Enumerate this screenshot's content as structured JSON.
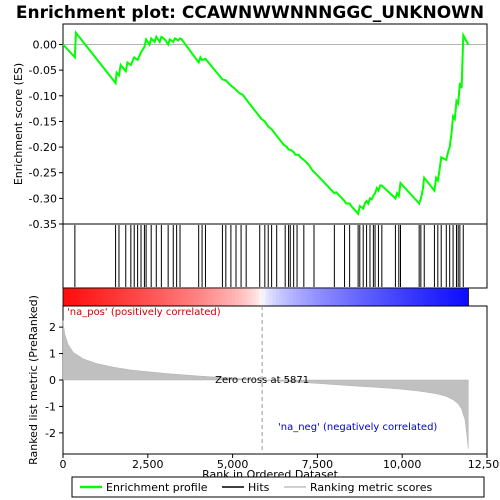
{
  "chart_data": {
    "type": "line",
    "title": "Enrichment plot: CCAWNWWNNNGGC_UNKNOWN",
    "xlabel": "Rank in Ordered Dataset",
    "ylabel_top": "Enrichment score (ES)",
    "ylabel_bottom": "Ranked list metric (PreRanked)",
    "x_range": [
      0,
      12500
    ],
    "x_ticks": [
      "0",
      "2,500",
      "5,000",
      "7,500",
      "10,000",
      "12,500"
    ],
    "x_tick_values": [
      0,
      2500,
      5000,
      7500,
      10000,
      12500
    ],
    "es_range": [
      -0.35,
      0.04
    ],
    "es_ticks": [
      "0.00",
      "-0.05",
      "-0.10",
      "-0.15",
      "-0.20",
      "-0.25",
      "-0.30",
      "-0.35"
    ],
    "es_tick_values": [
      0,
      -0.05,
      -0.1,
      -0.15,
      -0.2,
      -0.25,
      -0.3,
      -0.35
    ],
    "metric_range": [
      -2.8,
      2.8
    ],
    "metric_ticks": [
      "2",
      "1",
      "0",
      "-1",
      "-2"
    ],
    "metric_tick_values": [
      2,
      1,
      0,
      -1,
      -2
    ],
    "n_genes": 11950,
    "zero_cross": 5871,
    "zero_cross_label": "Zero cross at 5871",
    "pos_label": "'na_pos' (positively correlated)",
    "neg_label": "'na_neg' (negatively correlated)",
    "enrichment_profile": {
      "name": "Enrichment profile",
      "color": "#00ff00",
      "x": [
        0,
        350,
        380,
        1550,
        1580,
        1650,
        1700,
        1850,
        1900,
        2000,
        2100,
        2200,
        2300,
        2400,
        2450,
        2550,
        2600,
        2700,
        2750,
        2850,
        2900,
        3000,
        3100,
        3150,
        3250,
        3300,
        3400,
        3450,
        3500,
        4000,
        4050,
        4100,
        4200,
        4700,
        4800,
        4950,
        5050,
        5200,
        5300,
        5400,
        5850,
        5950,
        6050,
        6150,
        6300,
        6500,
        6600,
        6650,
        6700,
        6800,
        6850,
        6950,
        7000,
        7100,
        7250,
        7350,
        7500,
        8000,
        8050,
        8300,
        8350,
        8450,
        8500,
        8700,
        8750,
        8850,
        8900,
        8950,
        9000,
        9050,
        9100,
        9150,
        9200,
        9250,
        9300,
        9350,
        9400,
        9800,
        9850,
        9900,
        9950,
        10500,
        10550,
        10600,
        10650,
        10950,
        11000,
        11050,
        11100,
        11150,
        11300,
        11350,
        11400,
        11450,
        11500,
        11550,
        11600,
        11650,
        11700,
        11750,
        11800,
        11950
      ],
      "y": [
        0.0,
        -0.025,
        0.023,
        -0.075,
        -0.055,
        -0.06,
        -0.04,
        -0.052,
        -0.035,
        -0.04,
        -0.025,
        -0.03,
        -0.015,
        -0.005,
        0.01,
        0.0,
        0.012,
        0.005,
        0.015,
        0.005,
        0.015,
        0.01,
        0.0,
        0.01,
        0.005,
        0.012,
        0.008,
        0.012,
        0.01,
        -0.035,
        -0.025,
        -0.03,
        -0.028,
        -0.068,
        -0.07,
        -0.08,
        -0.085,
        -0.095,
        -0.098,
        -0.107,
        -0.145,
        -0.15,
        -0.16,
        -0.165,
        -0.178,
        -0.195,
        -0.2,
        -0.205,
        -0.205,
        -0.21,
        -0.215,
        -0.215,
        -0.22,
        -0.225,
        -0.235,
        -0.245,
        -0.255,
        -0.29,
        -0.288,
        -0.305,
        -0.31,
        -0.31,
        -0.315,
        -0.33,
        -0.315,
        -0.32,
        -0.31,
        -0.305,
        -0.31,
        -0.3,
        -0.302,
        -0.295,
        -0.29,
        -0.28,
        -0.285,
        -0.275,
        -0.275,
        -0.3,
        -0.29,
        -0.295,
        -0.27,
        -0.31,
        -0.3,
        -0.285,
        -0.26,
        -0.285,
        -0.26,
        -0.265,
        -0.245,
        -0.22,
        -0.225,
        -0.21,
        -0.2,
        -0.175,
        -0.14,
        -0.145,
        -0.11,
        -0.115,
        -0.075,
        -0.085,
        0.018,
        0.0
      ]
    },
    "hits": [
      350,
      1550,
      1650,
      1850,
      2000,
      2100,
      2200,
      2300,
      2400,
      2450,
      2600,
      2750,
      2900,
      3100,
      3250,
      3350,
      3450,
      4000,
      4100,
      4200,
      4700,
      4800,
      4950,
      5100,
      5250,
      5400,
      5800,
      5950,
      6050,
      6150,
      6300,
      6550,
      6650,
      6700,
      6800,
      6900,
      7100,
      7400,
      8000,
      8300,
      8450,
      8700,
      8750,
      8850,
      8950,
      9050,
      9150,
      9200,
      9300,
      9400,
      9800,
      9900,
      9950,
      10500,
      10550,
      10650,
      10950,
      11050,
      11150,
      11300,
      11400,
      11500,
      11600,
      11650,
      11700,
      11800
    ],
    "ranked_metric": {
      "name": "Ranking metric scores",
      "color": "#c0c0c0",
      "x": [
        0,
        50,
        150,
        300,
        600,
        1000,
        1500,
        2000,
        3000,
        4000,
        5000,
        5871,
        6500,
        7500,
        8500,
        9500,
        10000,
        10500,
        11000,
        11300,
        11500,
        11650,
        11750,
        11850,
        11900,
        11950
      ],
      "y": [
        2.25,
        1.75,
        1.35,
        1.05,
        0.8,
        0.62,
        0.48,
        0.38,
        0.25,
        0.15,
        0.07,
        0.0,
        -0.05,
        -0.13,
        -0.22,
        -0.3,
        -0.35,
        -0.42,
        -0.52,
        -0.62,
        -0.75,
        -0.9,
        -1.1,
        -1.5,
        -2.0,
        -2.6
      ]
    },
    "legend": [
      {
        "label": "Enrichment profile",
        "color": "#00ff00",
        "kind": "line"
      },
      {
        "label": "Hits",
        "color": "#000000",
        "kind": "line"
      },
      {
        "label": "Ranking metric scores",
        "color": "#c0c0c0",
        "kind": "line"
      }
    ]
  }
}
